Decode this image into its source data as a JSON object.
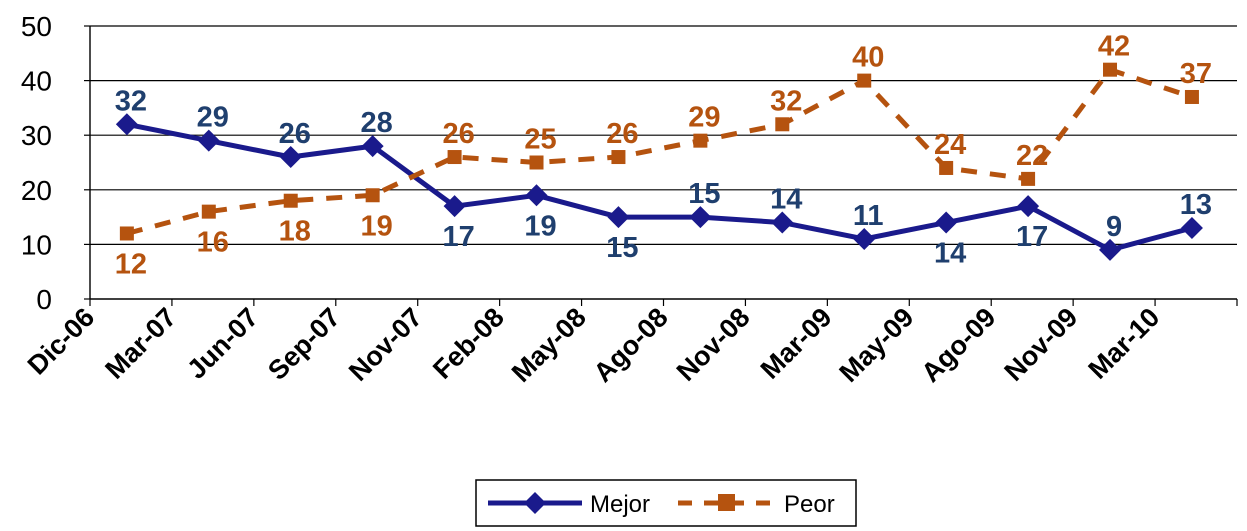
{
  "chart_data": {
    "type": "line",
    "categories": [
      "Dic-06",
      "Mar-07",
      "Jun-07",
      "Sep-07",
      "Nov-07",
      "Feb-08",
      "May-08",
      "Ago-08",
      "Nov-08",
      "Mar-09",
      "May-09",
      "Ago-09",
      "Nov-09",
      "Mar-10"
    ],
    "series": [
      {
        "name": "Mejor",
        "color": "#1a1a8c",
        "label_color": "#1f3f6e",
        "line_style": "solid",
        "marker": "diamond",
        "values": [
          32,
          29,
          26,
          28,
          17,
          19,
          15,
          15,
          14,
          11,
          14,
          17,
          9,
          13
        ],
        "label_pos": [
          "above",
          "above",
          "above",
          "above",
          "below",
          "below",
          "below",
          "above",
          "above",
          "above",
          "below",
          "below",
          "above",
          "above"
        ]
      },
      {
        "name": "Peor",
        "color": "#b5530f",
        "label_color": "#b5530f",
        "line_style": "dashed",
        "marker": "square",
        "values": [
          12,
          16,
          18,
          19,
          26,
          25,
          26,
          29,
          32,
          40,
          24,
          22,
          42,
          37
        ],
        "label_pos": [
          "below",
          "below",
          "below",
          "below",
          "above",
          "above",
          "above",
          "above",
          "above",
          "above",
          "above",
          "above",
          "above",
          "above"
        ]
      }
    ],
    "xlabel": "",
    "ylabel": "",
    "ylim": [
      0,
      50
    ],
    "yticks": [
      "0",
      "10",
      "20",
      "30",
      "40",
      "50"
    ],
    "grid": true,
    "legend_position": "bottom-center"
  }
}
